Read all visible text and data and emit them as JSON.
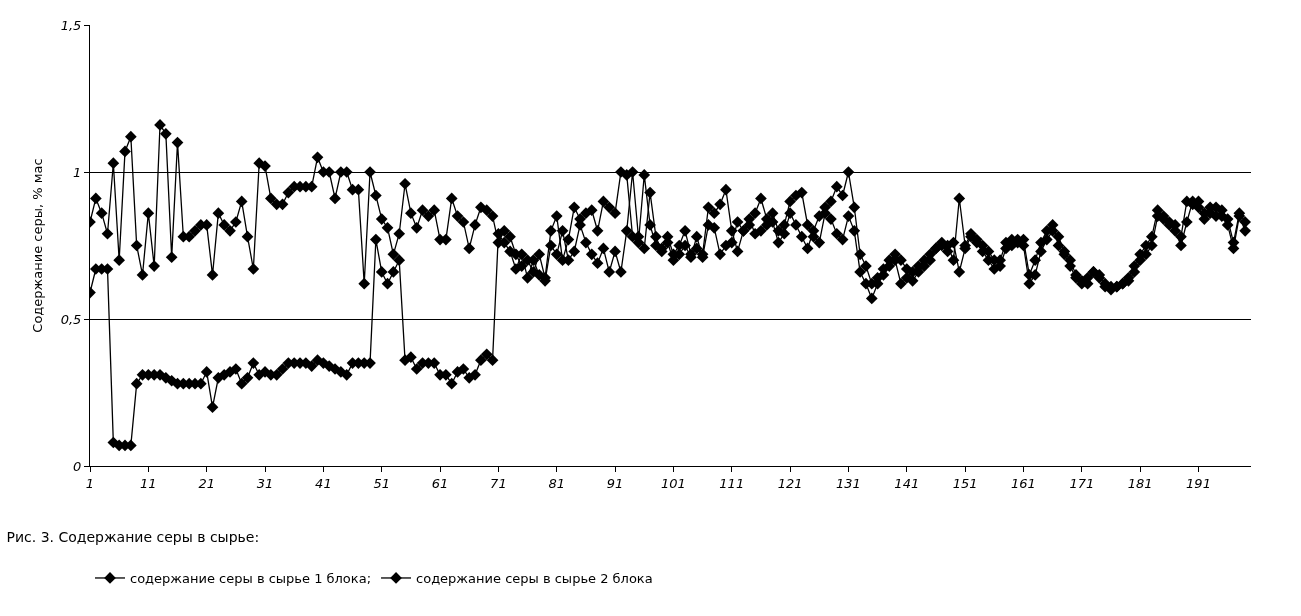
{
  "chart_data": {
    "type": "line",
    "title": "Рис. 3. Содержание серы в сырье:",
    "ylabel": "Содержание серы, % мас",
    "x": [
      1,
      2,
      3,
      4,
      5,
      6,
      7,
      8,
      9,
      10,
      11,
      12,
      13,
      14,
      15,
      16,
      17,
      18,
      19,
      20,
      21,
      22,
      23,
      24,
      25,
      26,
      27,
      28,
      29,
      30,
      31,
      32,
      33,
      34,
      35,
      36,
      37,
      38,
      39,
      40,
      41,
      42,
      43,
      44,
      45,
      46,
      47,
      48,
      49,
      50,
      51,
      52,
      53,
      54,
      55,
      56,
      57,
      58,
      59,
      60,
      61,
      62,
      63,
      64,
      65,
      66,
      67,
      68,
      69,
      70,
      71,
      72,
      73,
      74,
      75,
      76,
      77,
      78,
      79,
      80,
      81,
      82,
      83,
      84,
      85,
      86,
      87,
      88,
      89,
      90,
      91,
      92,
      93,
      94,
      95,
      96,
      97,
      98,
      99,
      100,
      101,
      102,
      103,
      104,
      105,
      106,
      107,
      108,
      109,
      110,
      111,
      112,
      113,
      114,
      115,
      116,
      117,
      118,
      119,
      120,
      121,
      122,
      123,
      124,
      125,
      126,
      127,
      128,
      129,
      130,
      131,
      132,
      133,
      134,
      135,
      136,
      137,
      138,
      139,
      140,
      141,
      142,
      143,
      144,
      145,
      146,
      147,
      148,
      149,
      150,
      151,
      152,
      153,
      154,
      155,
      156,
      157,
      158,
      159,
      160,
      161,
      162,
      163,
      164,
      165,
      166,
      167,
      168,
      169,
      170,
      171,
      172,
      173,
      174,
      175,
      176,
      177,
      178,
      179,
      180,
      181,
      182,
      183,
      184,
      185,
      186,
      187,
      188,
      189,
      190,
      191,
      192,
      193,
      194,
      195,
      196,
      197,
      198,
      199
    ],
    "series": [
      {
        "name": "содержание серы в сырье 1 блока;",
        "color": "#000000",
        "values": [
          0.59,
          0.67,
          0.67,
          0.67,
          0.08,
          0.07,
          0.07,
          0.07,
          0.28,
          0.31,
          0.31,
          0.31,
          0.31,
          0.3,
          0.29,
          0.28,
          0.28,
          0.28,
          0.28,
          0.28,
          0.32,
          0.2,
          0.3,
          0.31,
          0.32,
          0.33,
          0.28,
          0.3,
          0.35,
          0.31,
          0.32,
          0.31,
          0.31,
          0.33,
          0.35,
          0.35,
          0.35,
          0.35,
          0.34,
          0.36,
          0.35,
          0.34,
          0.33,
          0.32,
          0.31,
          0.35,
          0.35,
          0.35,
          0.35,
          0.77,
          0.66,
          0.62,
          0.66,
          0.7,
          0.36,
          0.37,
          0.33,
          0.35,
          0.35,
          0.35,
          0.31,
          0.31,
          0.28,
          0.32,
          0.33,
          0.3,
          0.31,
          0.36,
          0.38,
          0.36,
          0.79,
          0.76,
          0.73,
          0.67,
          0.72,
          0.64,
          0.7,
          0.65,
          0.63,
          0.75,
          0.72,
          0.8,
          0.7,
          0.73,
          0.82,
          0.76,
          0.72,
          0.69,
          0.74,
          0.66,
          0.73,
          0.66,
          0.8,
          1.0,
          0.78,
          0.74,
          0.93,
          0.78,
          0.73,
          0.76,
          0.7,
          0.72,
          0.75,
          0.71,
          0.78,
          0.71,
          0.82,
          0.81,
          0.72,
          0.75,
          0.76,
          0.83,
          0.8,
          0.84,
          0.79,
          0.8,
          0.82,
          0.83,
          0.76,
          0.79,
          0.86,
          0.82,
          0.78,
          0.74,
          0.8,
          0.85,
          0.88,
          0.84,
          0.79,
          0.77,
          0.85,
          0.8,
          0.66,
          0.62,
          0.57,
          0.62,
          0.65,
          0.68,
          0.7,
          0.62,
          0.64,
          0.66,
          0.68,
          0.7,
          0.72,
          0.74,
          0.75,
          0.73,
          0.76,
          0.66,
          0.74,
          0.78,
          0.76,
          0.73,
          0.7,
          0.67,
          0.68,
          0.74,
          0.75,
          0.76,
          0.75,
          0.62,
          0.65,
          0.73,
          0.77,
          0.8,
          0.78,
          0.73,
          0.7,
          0.65,
          0.63,
          0.62,
          0.66,
          0.65,
          0.61,
          0.6,
          0.61,
          0.62,
          0.63,
          0.66,
          0.7,
          0.72,
          0.75,
          0.85,
          0.84,
          0.82,
          0.8,
          0.75,
          0.83,
          0.9,
          0.88,
          0.84,
          0.86,
          0.88,
          0.85,
          0.82,
          0.74,
          0.85,
          0.8
        ]
      },
      {
        "name": "содержание серы в сырье 2 блока",
        "color": "#000000",
        "values": [
          0.83,
          0.91,
          0.86,
          0.79,
          1.03,
          0.7,
          1.07,
          1.12,
          0.75,
          0.65,
          0.86,
          0.68,
          1.16,
          1.13,
          0.71,
          1.1,
          0.78,
          0.78,
          0.8,
          0.82,
          0.82,
          0.65,
          0.86,
          0.82,
          0.8,
          0.83,
          0.9,
          0.78,
          0.67,
          1.03,
          1.02,
          0.91,
          0.89,
          0.89,
          0.93,
          0.95,
          0.95,
          0.95,
          0.95,
          1.05,
          1.0,
          1.0,
          0.91,
          1.0,
          1.0,
          0.94,
          0.94,
          0.62,
          1.0,
          0.92,
          0.84,
          0.81,
          0.72,
          0.79,
          0.96,
          0.86,
          0.81,
          0.87,
          0.85,
          0.87,
          0.77,
          0.77,
          0.91,
          0.85,
          0.83,
          0.74,
          0.82,
          0.88,
          0.87,
          0.85,
          0.76,
          0.8,
          0.78,
          0.72,
          0.68,
          0.7,
          0.66,
          0.72,
          0.64,
          0.8,
          0.85,
          0.7,
          0.77,
          0.88,
          0.84,
          0.86,
          0.87,
          0.8,
          0.9,
          0.88,
          0.86,
          1.0,
          0.99,
          0.78,
          0.76,
          0.99,
          0.82,
          0.75,
          0.74,
          0.78,
          0.72,
          0.75,
          0.8,
          0.72,
          0.74,
          0.72,
          0.88,
          0.86,
          0.89,
          0.94,
          0.8,
          0.73,
          0.8,
          0.82,
          0.86,
          0.91,
          0.84,
          0.86,
          0.8,
          0.82,
          0.9,
          0.92,
          0.93,
          0.82,
          0.78,
          0.76,
          0.86,
          0.9,
          0.95,
          0.92,
          1.0,
          0.88,
          0.72,
          0.68,
          0.62,
          0.64,
          0.67,
          0.7,
          0.72,
          0.7,
          0.67,
          0.63,
          0.66,
          0.68,
          0.7,
          0.74,
          0.76,
          0.75,
          0.7,
          0.91,
          0.75,
          0.79,
          0.77,
          0.75,
          0.73,
          0.7,
          0.7,
          0.76,
          0.77,
          0.77,
          0.77,
          0.65,
          0.7,
          0.76,
          0.8,
          0.82,
          0.75,
          0.72,
          0.68,
          0.64,
          0.62,
          0.64,
          0.66,
          0.64,
          0.62,
          0.61,
          0.61,
          0.62,
          0.64,
          0.68,
          0.72,
          0.75,
          0.78,
          0.87,
          0.85,
          0.83,
          0.82,
          0.78,
          0.9,
          0.89,
          0.9,
          0.86,
          0.88,
          0.85,
          0.87,
          0.84,
          0.76,
          0.86,
          0.83
        ]
      }
    ],
    "xlim": [
      1,
      200
    ],
    "xticks": [
      1,
      11,
      21,
      31,
      41,
      51,
      61,
      71,
      81,
      91,
      101,
      111,
      121,
      131,
      141,
      151,
      161,
      171,
      181,
      191
    ],
    "ylim": [
      0,
      1.5
    ],
    "yticks": [
      0,
      {
        "value": 0.5,
        "label": "0,5"
      },
      1,
      {
        "value": 1.5,
        "label": "1,5"
      }
    ],
    "grid": "y",
    "legend": "bottom",
    "marker": "diamond",
    "line_style": "solid"
  }
}
